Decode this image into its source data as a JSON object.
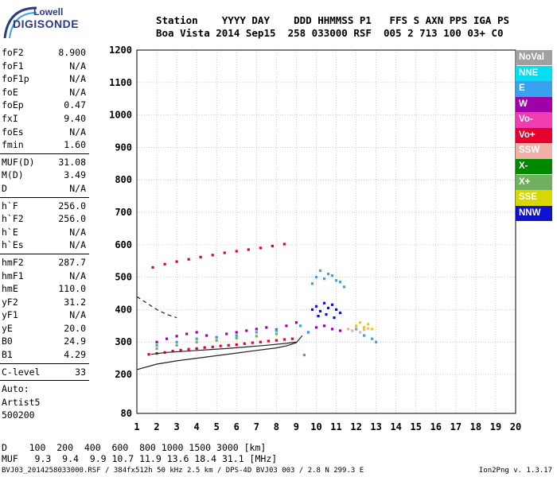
{
  "logo": {
    "top": "Lowell",
    "bottom": "DIGISONDE"
  },
  "header": {
    "line1": "Station    YYYY DAY    DDD HHMMSS P1   FFS S AXN PPS IGA PS",
    "line2": "Boa Vista 2014 Sep15  258 033000 RSF  005 2 713 100 03+ C0"
  },
  "params": [
    {
      "name": "foF2",
      "value": "8.900"
    },
    {
      "name": "foF1",
      "value": "N/A"
    },
    {
      "name": "foF1p",
      "value": "N/A"
    },
    {
      "name": "foE",
      "value": "N/A"
    },
    {
      "name": "foEp",
      "value": "0.47"
    },
    {
      "name": "fxI",
      "value": "9.40"
    },
    {
      "name": "foEs",
      "value": "N/A"
    },
    {
      "name": "fmin",
      "value": "1.60"
    },
    {
      "sep": true
    },
    {
      "name": "MUF(D)",
      "value": "31.08"
    },
    {
      "name": "M(D)",
      "value": "3.49"
    },
    {
      "name": "D",
      "value": "N/A"
    },
    {
      "sep": true
    },
    {
      "name": "h`F",
      "value": "256.0"
    },
    {
      "name": "h`F2",
      "value": "256.0"
    },
    {
      "name": "h`E",
      "value": "N/A"
    },
    {
      "name": "h`Es",
      "value": "N/A"
    },
    {
      "sep": true
    },
    {
      "name": "hmF2",
      "value": "287.7"
    },
    {
      "name": "hmF1",
      "value": "N/A"
    },
    {
      "name": "hmE",
      "value": "110.0"
    },
    {
      "name": "yF2",
      "value": "31.2"
    },
    {
      "name": "yF1",
      "value": "N/A"
    },
    {
      "name": "yE",
      "value": "20.0"
    },
    {
      "name": "B0",
      "value": "24.9"
    },
    {
      "name": "B1",
      "value": "4.29"
    },
    {
      "sep": true
    },
    {
      "name": "C-level",
      "value": "33"
    },
    {
      "sep": true
    },
    {
      "name": "Auto:",
      "value": ""
    },
    {
      "name": "Artist5",
      "value": ""
    },
    {
      "name": "500200",
      "value": ""
    }
  ],
  "footer": {
    "d_line": "D    100  200  400  600  800 1000 1500 3000 [km]",
    "muf_line": "MUF   9.3  9.4  9.9 10.7 11.9 13.6 18.4 31.1 [MHz]",
    "info": "BVJ03_2014258033000.RSF / 384fx512h 50 kHz 2.5 km / DPS-4D BVJ03 003 / 2.8 N 299.3 E",
    "version": "Ion2Png v. 1.3.17"
  },
  "legend": [
    {
      "label": "NoVal",
      "color": "#a0a0a0"
    },
    {
      "label": "NNE",
      "color": "#00e0f0"
    },
    {
      "label": "E",
      "color": "#3aa0f0"
    },
    {
      "label": "W",
      "color": "#a000a8"
    },
    {
      "label": "Vo-",
      "color": "#f03cb0"
    },
    {
      "label": "Vo+",
      "color": "#e8002c"
    },
    {
      "label": "SSW",
      "color": "#f0b0a8"
    },
    {
      "label": "X-",
      "color": "#008800"
    },
    {
      "label": "X+",
      "color": "#70b060"
    },
    {
      "label": "SSE",
      "color": "#d8d800"
    },
    {
      "label": "NNW",
      "color": "#1010d0"
    }
  ],
  "chart_data": {
    "type": "scatter",
    "xlim": [
      1,
      20
    ],
    "ylim": [
      80,
      1200
    ],
    "x_ticks": [
      1,
      2,
      3,
      4,
      5,
      6,
      7,
      8,
      9,
      10,
      11,
      12,
      13,
      14,
      15,
      16,
      17,
      18,
      19,
      20
    ],
    "y_ticks": [
      80,
      200,
      300,
      400,
      500,
      600,
      700,
      800,
      900,
      1000,
      1100,
      1200
    ],
    "grid": true,
    "legend_position": "right",
    "series": [
      {
        "name": "Vo+",
        "color": "#e8002c",
        "x": [
          1.6,
          2.0,
          2.4,
          2.8,
          3.2,
          3.6,
          4.0,
          4.4,
          4.8,
          5.2,
          5.6,
          6.0,
          6.4,
          6.8,
          7.2,
          7.6,
          8.0,
          8.4,
          8.8,
          1.8,
          2.4,
          3.0,
          3.6,
          4.2,
          4.8,
          5.4,
          6.0,
          6.6,
          7.2,
          7.8,
          8.4
        ],
        "y": [
          262,
          265,
          268,
          272,
          275,
          278,
          280,
          283,
          285,
          288,
          290,
          292,
          295,
          298,
          300,
          303,
          305,
          308,
          310,
          530,
          540,
          548,
          555,
          562,
          568,
          575,
          580,
          585,
          590,
          596,
          602
        ]
      },
      {
        "name": "W",
        "color": "#a000a8",
        "x": [
          2.0,
          2.5,
          3.0,
          3.5,
          4.0,
          4.5,
          5.0,
          5.5,
          6.0,
          6.5,
          7.0,
          7.5,
          8.0,
          8.5,
          9.0,
          9.6,
          10.0,
          10.4,
          10.8,
          11.2
        ],
        "y": [
          300,
          310,
          318,
          325,
          330,
          320,
          315,
          325,
          330,
          335,
          340,
          345,
          338,
          350,
          360,
          330,
          345,
          350,
          340,
          335
        ]
      },
      {
        "name": "NNW",
        "color": "#1010d0",
        "x": [
          9.8,
          10.0,
          10.2,
          10.4,
          10.6,
          10.8,
          11.0,
          11.2,
          10.1,
          10.5,
          10.9
        ],
        "y": [
          400,
          410,
          395,
          420,
          405,
          415,
          400,
          390,
          380,
          385,
          375
        ]
      },
      {
        "name": "E",
        "color": "#3aa0f0",
        "x": [
          2.0,
          3.0,
          4.0,
          5.0,
          6.0,
          7.0,
          8.0,
          9.6,
          9.8,
          10.0,
          10.2,
          10.4,
          10.6,
          10.8,
          11.0,
          11.2,
          11.4,
          12.0,
          12.4,
          12.8,
          13.0,
          9.2,
          9.4
        ],
        "y": [
          290,
          300,
          310,
          315,
          320,
          330,
          335,
          330,
          480,
          500,
          520,
          495,
          510,
          505,
          490,
          485,
          470,
          340,
          320,
          310,
          300,
          350,
          260
        ]
      },
      {
        "name": "X+",
        "color": "#70b060",
        "x": [
          2.0,
          3.0,
          4.0,
          5.0,
          6.0,
          7.0,
          8.0
        ],
        "y": [
          280,
          290,
          300,
          305,
          312,
          318,
          325
        ]
      },
      {
        "name": "SSE",
        "color": "#d8d800",
        "x": [
          12.0,
          12.2,
          12.4,
          12.6,
          12.8
        ],
        "y": [
          350,
          360,
          345,
          355,
          340
        ]
      },
      {
        "name": "SSW",
        "color": "#f0b0a8",
        "x": [
          11.6,
          11.8,
          12.0,
          12.2,
          12.4,
          12.6
        ],
        "y": [
          340,
          335,
          345,
          330,
          338,
          342
        ]
      }
    ],
    "curves": [
      {
        "name": "profile",
        "style": "solid",
        "x": [
          1.0,
          2.0,
          3.0,
          4.0,
          5.0,
          6.0,
          7.0,
          8.0,
          8.5,
          9.0,
          9.3
        ],
        "y": [
          215,
          232,
          242,
          250,
          258,
          266,
          274,
          282,
          288,
          298,
          320
        ]
      },
      {
        "name": "profile-upper",
        "style": "solid",
        "x": [
          1.7,
          2.5,
          3.5,
          4.5,
          5.5,
          6.5,
          7.5,
          8.5,
          9.0
        ],
        "y": [
          262,
          268,
          272,
          276,
          280,
          285,
          290,
          296,
          300
        ]
      },
      {
        "name": "dashed",
        "style": "dashed",
        "x": [
          1.0,
          1.5,
          2.0,
          2.5,
          3.0
        ],
        "y": [
          440,
          420,
          400,
          385,
          375
        ]
      }
    ]
  }
}
